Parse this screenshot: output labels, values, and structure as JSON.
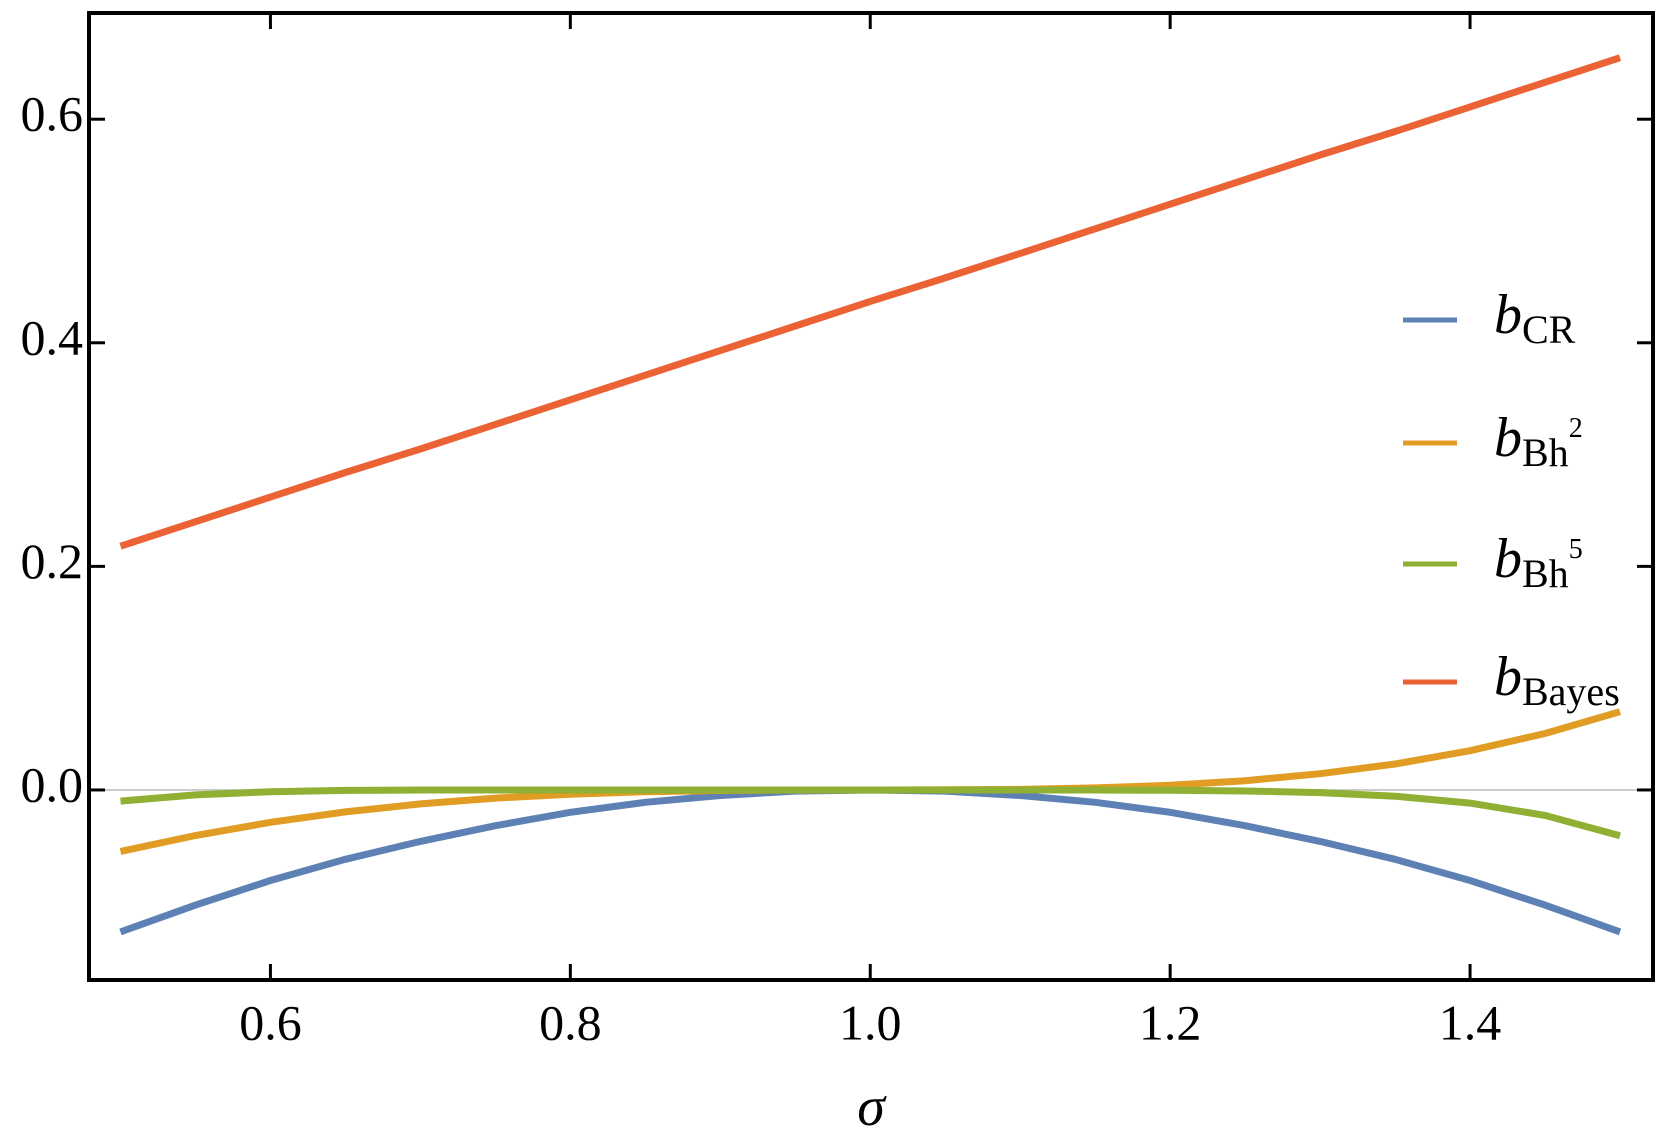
{
  "chart_data": {
    "type": "line",
    "x_label": "σ",
    "x": [
      0.5,
      0.55,
      0.6,
      0.65,
      0.7,
      0.75,
      0.8,
      0.85,
      0.9,
      0.95,
      1.0,
      1.05,
      1.1,
      1.15,
      1.2,
      1.25,
      1.3,
      1.35,
      1.4,
      1.45,
      1.5
    ],
    "series": [
      {
        "name": "bCR",
        "color": "#5e81b5",
        "values": [
          -0.127,
          -0.103,
          -0.081,
          -0.062,
          -0.046,
          -0.032,
          -0.02,
          -0.011,
          -0.005,
          -0.001,
          0,
          -0.001,
          -0.005,
          -0.011,
          -0.02,
          -0.032,
          -0.046,
          -0.062,
          -0.081,
          -0.103,
          -0.127
        ]
      },
      {
        "name": "bBh2",
        "color": "#e19c24",
        "values": [
          -0.055,
          -0.0407,
          -0.0289,
          -0.0196,
          -0.0125,
          -0.0073,
          -0.0038,
          -0.0016,
          -0.0005,
          -0.0001,
          0,
          0.0001,
          0.0005,
          0.0018,
          0.0042,
          0.0083,
          0.0145,
          0.0232,
          0.0351,
          0.0505,
          0.07
        ]
      },
      {
        "name": "bBh5",
        "color": "#8fb032",
        "values": [
          -0.01,
          -0.0044,
          -0.0016,
          -0.0004,
          0,
          0,
          0,
          0,
          0,
          0,
          0,
          0,
          0,
          0,
          -0.0003,
          -0.0009,
          -0.0024,
          -0.0056,
          -0.0118,
          -0.0228,
          -0.041
        ]
      },
      {
        "name": "bBayes",
        "color": "#eb6235",
        "values": [
          0.218,
          0.24,
          0.262,
          0.284,
          0.305,
          0.327,
          0.349,
          0.371,
          0.393,
          0.415,
          0.437,
          0.458,
          0.48,
          0.502,
          0.524,
          0.546,
          0.568,
          0.589,
          0.611,
          0.633,
          0.655
        ]
      }
    ],
    "xlim": [
      0.479,
      1.522
    ],
    "ylim": [
      -0.17,
      0.695
    ],
    "xticks": [
      0.6,
      0.8,
      {
        "value": 1.0,
        "label": "1.0"
      },
      1.2,
      1.4
    ],
    "yticks": [
      {
        "value": 0.0,
        "label": "0.0"
      },
      0.2,
      0.4,
      0.6
    ],
    "legend": "right"
  }
}
